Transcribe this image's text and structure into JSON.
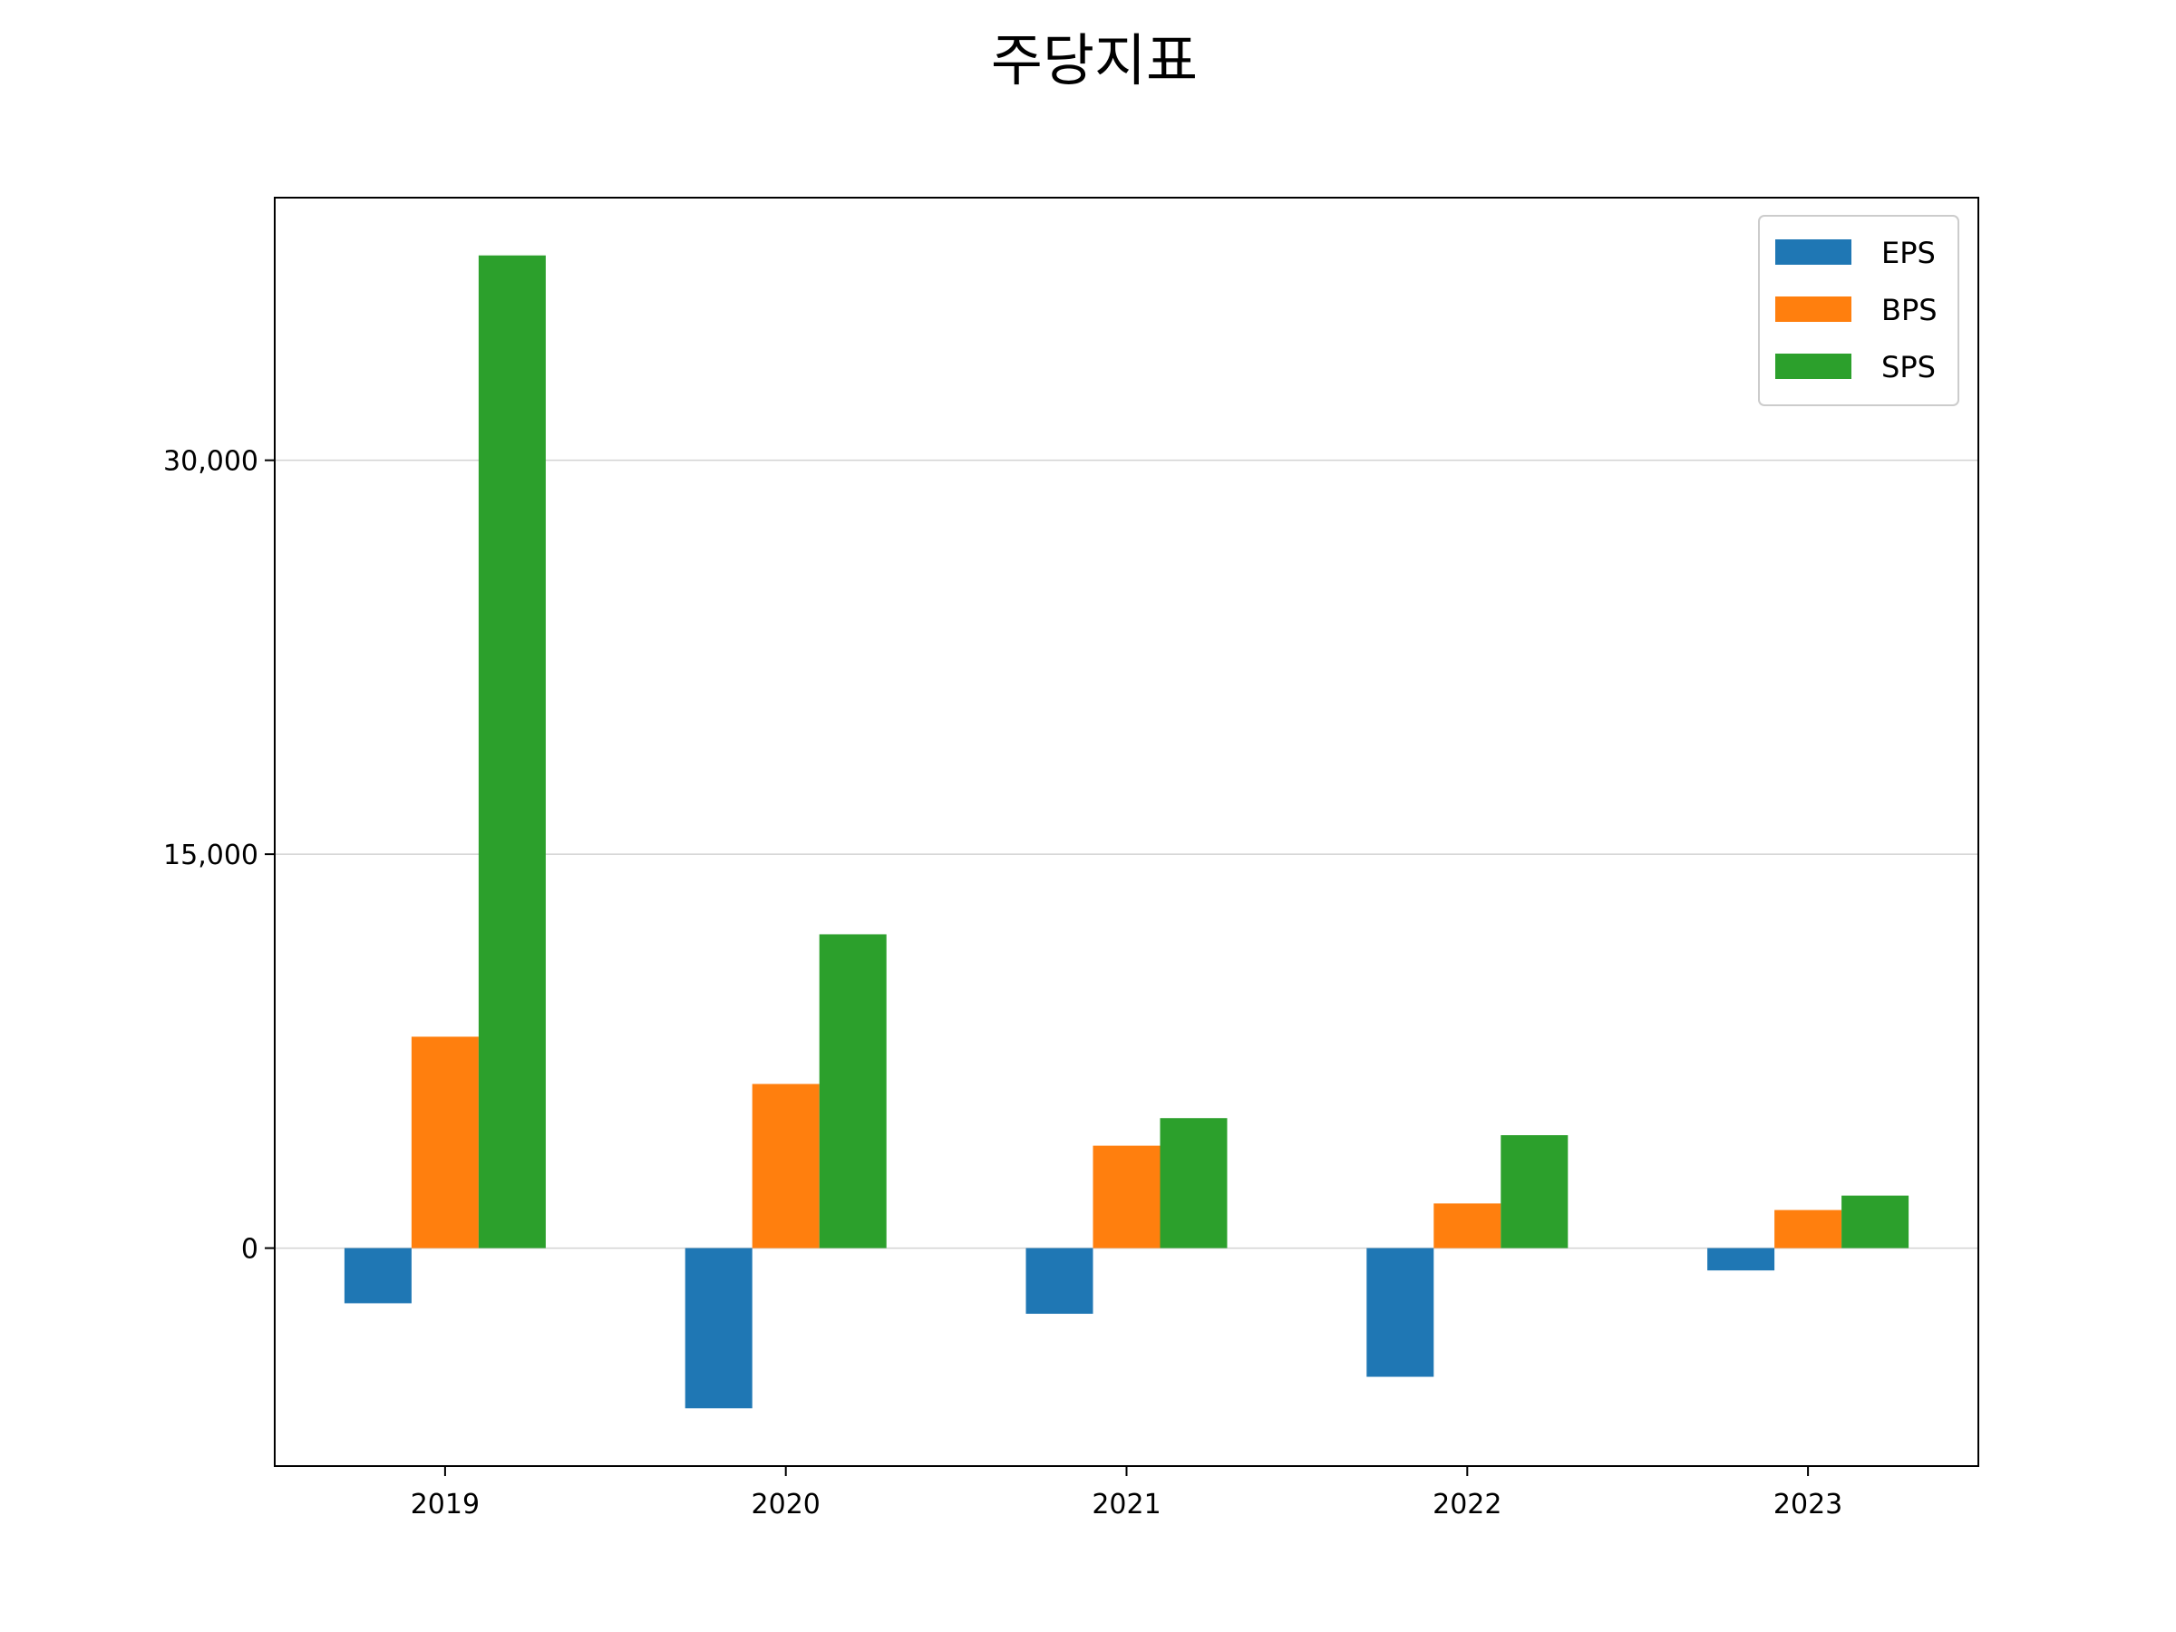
{
  "chart_data": {
    "type": "bar",
    "title": "주당지표",
    "xlabel": "",
    "ylabel": "",
    "categories": [
      "2019",
      "2020",
      "2021",
      "2022",
      "2023"
    ],
    "series": [
      {
        "name": "EPS",
        "color": "#1f77b4",
        "values": [
          -2100,
          -6100,
          -2500,
          -4900,
          -850
        ]
      },
      {
        "name": "BPS",
        "color": "#ff7f0e",
        "values": [
          8050,
          6250,
          3900,
          1700,
          1450
        ]
      },
      {
        "name": "SPS",
        "color": "#2ca02c",
        "values": [
          37800,
          11950,
          4950,
          4300,
          2000
        ]
      }
    ],
    "yticks": [
      0,
      15000,
      30000
    ],
    "ytick_labels": [
      "0",
      "15,000",
      "30,000"
    ],
    "ylim": [
      -8300,
      40000
    ],
    "grid": "y",
    "legend_position": "top-right"
  }
}
